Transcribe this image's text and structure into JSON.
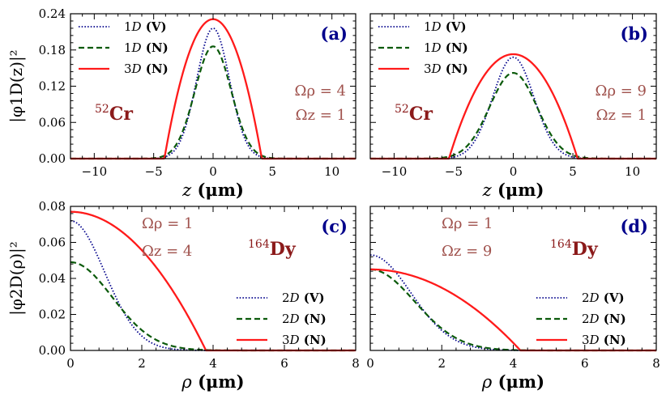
{
  "figure": {
    "colors": {
      "V": "#00008b",
      "N1": "#0b5a0b",
      "N3": "#ff1a1a",
      "param": "#a0524d",
      "species": "#8b1a1a",
      "panel_label": "#00008b"
    }
  },
  "chart_data": [
    {
      "type": "line",
      "panel": "(a)",
      "xlabel": "z (μm)",
      "ylabel": "|φ1D(z)|²",
      "xlim": [
        -12,
        12
      ],
      "ylim": [
        0,
        0.24
      ],
      "xticks": [
        -10,
        -5,
        0,
        5,
        10
      ],
      "yticks": [
        0.0,
        0.06,
        0.12,
        0.18,
        0.24
      ],
      "ytick_labels": [
        "0.00",
        "0.06",
        "0.12",
        "0.18",
        "0.24"
      ],
      "species": "52Cr",
      "params": [
        "Ωρ = 4",
        "Ωz = 1"
      ],
      "legend_position": "top-left",
      "legend": [
        "1D (V)",
        "1D (N)",
        "3D (N)"
      ],
      "series": [
        {
          "name": "1D (V)",
          "style": "dotted",
          "shape": "gaussian",
          "peak": 0.216,
          "width": 1.95
        },
        {
          "name": "1D (N)",
          "style": "dashed",
          "shape": "gaussian",
          "peak": 0.186,
          "width": 2.15
        },
        {
          "name": "3D (N)",
          "style": "solid",
          "shape": "thomas_fermi",
          "peak": 0.231,
          "radius": 4.1
        }
      ]
    },
    {
      "type": "line",
      "panel": "(b)",
      "xlabel": "z (μm)",
      "ylabel": "",
      "xlim": [
        -12,
        12
      ],
      "ylim": [
        0,
        0.24
      ],
      "xticks": [
        -10,
        -5,
        0,
        5,
        10
      ],
      "yticks": [
        0.0,
        0.06,
        0.12,
        0.18,
        0.24
      ],
      "ytick_labels": [],
      "species": "52Cr",
      "params": [
        "Ωρ = 9",
        "Ωz = 1"
      ],
      "legend_position": "top-left",
      "legend": [
        "1D (V)",
        "1D (N)",
        "3D (N)"
      ],
      "series": [
        {
          "name": "1D (V)",
          "style": "dotted",
          "shape": "gaussian",
          "peak": 0.168,
          "width": 2.45
        },
        {
          "name": "1D (N)",
          "style": "dashed",
          "shape": "gaussian",
          "peak": 0.142,
          "width": 2.8
        },
        {
          "name": "3D (N)",
          "style": "solid",
          "shape": "thomas_fermi",
          "peak": 0.173,
          "radius": 5.4
        }
      ]
    },
    {
      "type": "line",
      "panel": "(c)",
      "xlabel": "ρ (μm)",
      "ylabel": "|φ2D(ρ)|²",
      "xlim": [
        0,
        8
      ],
      "ylim": [
        0,
        0.08
      ],
      "xticks": [
        0,
        2,
        4,
        6,
        8
      ],
      "yticks": [
        0.0,
        0.02,
        0.04,
        0.06,
        0.08
      ],
      "ytick_labels": [
        "0.00",
        "0.02",
        "0.04",
        "0.06",
        "0.08"
      ],
      "species": "164Dy",
      "params": [
        "Ωρ = 1",
        "Ωz = 4"
      ],
      "legend_position": "bottom-right",
      "legend": [
        "2D (V)",
        "2D (N)",
        "3D (N)"
      ],
      "series": [
        {
          "name": "2D (V)",
          "style": "dotted",
          "shape": "gaussian",
          "peak": 0.072,
          "width": 1.35
        },
        {
          "name": "2D (N)",
          "style": "dashed",
          "shape": "gaussian",
          "peak": 0.049,
          "width": 1.65
        },
        {
          "name": "3D (N)",
          "style": "solid",
          "shape": "thomas_fermi",
          "peak": 0.077,
          "radius": 3.8
        }
      ]
    },
    {
      "type": "line",
      "panel": "(d)",
      "xlabel": "ρ (μm)",
      "ylabel": "",
      "xlim": [
        0,
        8
      ],
      "ylim": [
        0,
        0.08
      ],
      "xticks": [
        0,
        2,
        4,
        6,
        8
      ],
      "yticks": [
        0.0,
        0.02,
        0.04,
        0.06,
        0.08
      ],
      "ytick_labels": [],
      "species": "164Dy",
      "params": [
        "Ωρ = 1",
        "Ωz = 9"
      ],
      "legend_position": "bottom-right",
      "legend": [
        "2D (V)",
        "2D (N)",
        "3D (N)"
      ],
      "series": [
        {
          "name": "2D (V)",
          "style": "dotted",
          "shape": "gaussian",
          "peak": 0.053,
          "width": 1.6
        },
        {
          "name": "2D (N)",
          "style": "dashed",
          "shape": "gaussian",
          "peak": 0.045,
          "width": 1.75
        },
        {
          "name": "3D (N)",
          "style": "solid",
          "shape": "thomas_fermi",
          "peak": 0.045,
          "radius": 4.2
        }
      ]
    }
  ]
}
